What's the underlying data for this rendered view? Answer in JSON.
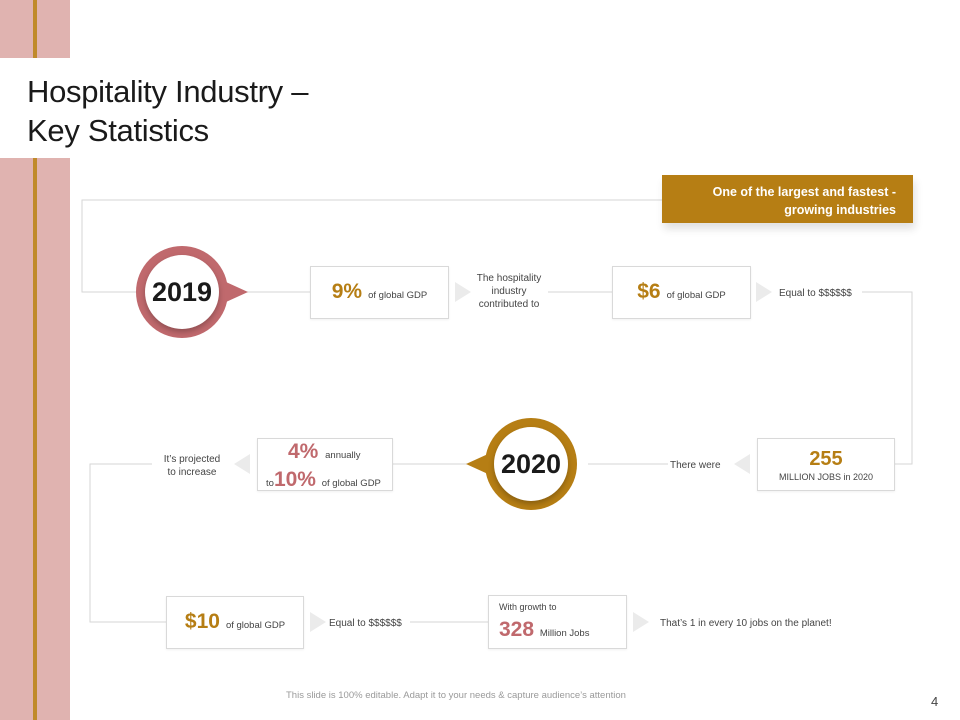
{
  "slide": {
    "title_line1": "Hospitality Industry –",
    "title_line2": "Key Statistics",
    "page_number": "4",
    "footer": "This slide is 100% editable. Adapt it to your needs & capture audience’s attention"
  },
  "banner": {
    "line1": "One of the largest and fastest -",
    "line2": "growing industries"
  },
  "colors": {
    "gold": "#b67e14",
    "rose": "#c0696d",
    "sidebar": "#e0b3b0"
  },
  "row1": {
    "year": "2019",
    "gdp_box": {
      "value": "9%",
      "label": "of global GDP"
    },
    "contributed_note": [
      "The hospitality",
      "industry",
      "contributed to"
    ],
    "usd_box": {
      "value": "$6",
      "label": "of global GDP"
    },
    "equal_note": "Equal to $$$$$$"
  },
  "row2": {
    "year": "2020",
    "jobs_box": {
      "value": "255",
      "label": "MILLION JOBS in 2020"
    },
    "there_were": "There were",
    "growth_box": {
      "value1": "4%",
      "label1": "annually",
      "prefix2": "to",
      "value2": "10%",
      "label2": "of global GDP"
    },
    "projected_note": [
      "It’s projected",
      "to increase"
    ]
  },
  "row3": {
    "usd_box": {
      "value": "$10",
      "label": "of global GDP"
    },
    "equal_note": "Equal to $$$$$$",
    "jobs_box": {
      "label_top": "With growth to",
      "value": "328",
      "label": "Million Jobs"
    },
    "planet_note": "That’s 1 in every 10 jobs on the planet!"
  }
}
